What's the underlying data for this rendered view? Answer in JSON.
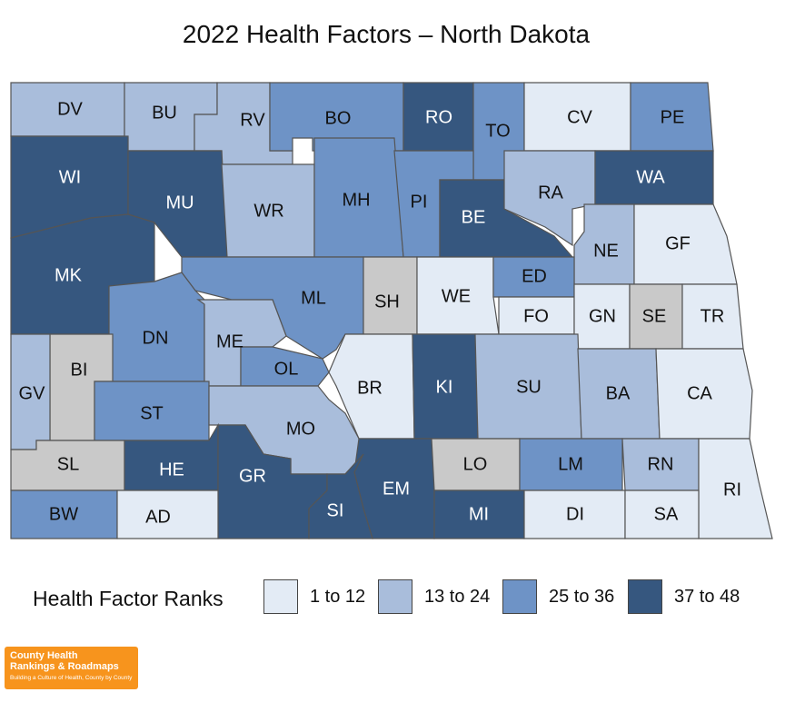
{
  "title": "2022 Health Factors – North Dakota",
  "legend": {
    "title": "Health Factor Ranks",
    "bins": [
      {
        "label": "1 to 12",
        "color": "#e3ebf5"
      },
      {
        "label": "13 to 24",
        "color": "#a9bddb"
      },
      {
        "label": "25 to 36",
        "color": "#6e93c6"
      },
      {
        "label": "37 to 48",
        "color": "#36577f"
      }
    ],
    "nodata_color": "#c9c9c9"
  },
  "logo": {
    "line1": "County Health",
    "line2": "Rankings & Roadmaps",
    "tagline": "Building a Culture of Health, County by County"
  },
  "counties": [
    {
      "code": "DV",
      "bin": 1
    },
    {
      "code": "BU",
      "bin": 1
    },
    {
      "code": "RV",
      "bin": 1
    },
    {
      "code": "BO",
      "bin": 2
    },
    {
      "code": "RO",
      "bin": 3
    },
    {
      "code": "TO",
      "bin": 2
    },
    {
      "code": "CV",
      "bin": 0
    },
    {
      "code": "PE",
      "bin": 2
    },
    {
      "code": "WI",
      "bin": 3
    },
    {
      "code": "MU",
      "bin": 3
    },
    {
      "code": "WR",
      "bin": 1
    },
    {
      "code": "MH",
      "bin": 2
    },
    {
      "code": "PI",
      "bin": 2
    },
    {
      "code": "BE",
      "bin": 3
    },
    {
      "code": "RA",
      "bin": 1
    },
    {
      "code": "WA",
      "bin": 3
    },
    {
      "code": "NE",
      "bin": 1
    },
    {
      "code": "GF",
      "bin": 0
    },
    {
      "code": "MK",
      "bin": 3
    },
    {
      "code": "ML",
      "bin": 2
    },
    {
      "code": "SH",
      "bin": -1
    },
    {
      "code": "WE",
      "bin": 0
    },
    {
      "code": "ED",
      "bin": 2
    },
    {
      "code": "FO",
      "bin": 0
    },
    {
      "code": "GN",
      "bin": 0
    },
    {
      "code": "SE",
      "bin": -1
    },
    {
      "code": "TR",
      "bin": 0
    },
    {
      "code": "DN",
      "bin": 2
    },
    {
      "code": "ME",
      "bin": 1
    },
    {
      "code": "OL",
      "bin": 2
    },
    {
      "code": "BI",
      "bin": -1
    },
    {
      "code": "GV",
      "bin": 1
    },
    {
      "code": "BR",
      "bin": 0
    },
    {
      "code": "KI",
      "bin": 3
    },
    {
      "code": "SU",
      "bin": 1
    },
    {
      "code": "BA",
      "bin": 1
    },
    {
      "code": "CA",
      "bin": 0
    },
    {
      "code": "ST",
      "bin": 2
    },
    {
      "code": "MO",
      "bin": 1
    },
    {
      "code": "SL",
      "bin": -1
    },
    {
      "code": "HE",
      "bin": 3
    },
    {
      "code": "GR",
      "bin": 3
    },
    {
      "code": "EM",
      "bin": 3
    },
    {
      "code": "LO",
      "bin": -1
    },
    {
      "code": "LM",
      "bin": 2
    },
    {
      "code": "RN",
      "bin": 1
    },
    {
      "code": "RI",
      "bin": 0
    },
    {
      "code": "BW",
      "bin": 2
    },
    {
      "code": "AD",
      "bin": 0
    },
    {
      "code": "SI",
      "bin": 3
    },
    {
      "code": "MI",
      "bin": 3
    },
    {
      "code": "DI",
      "bin": 0
    },
    {
      "code": "SA",
      "bin": 0
    }
  ]
}
